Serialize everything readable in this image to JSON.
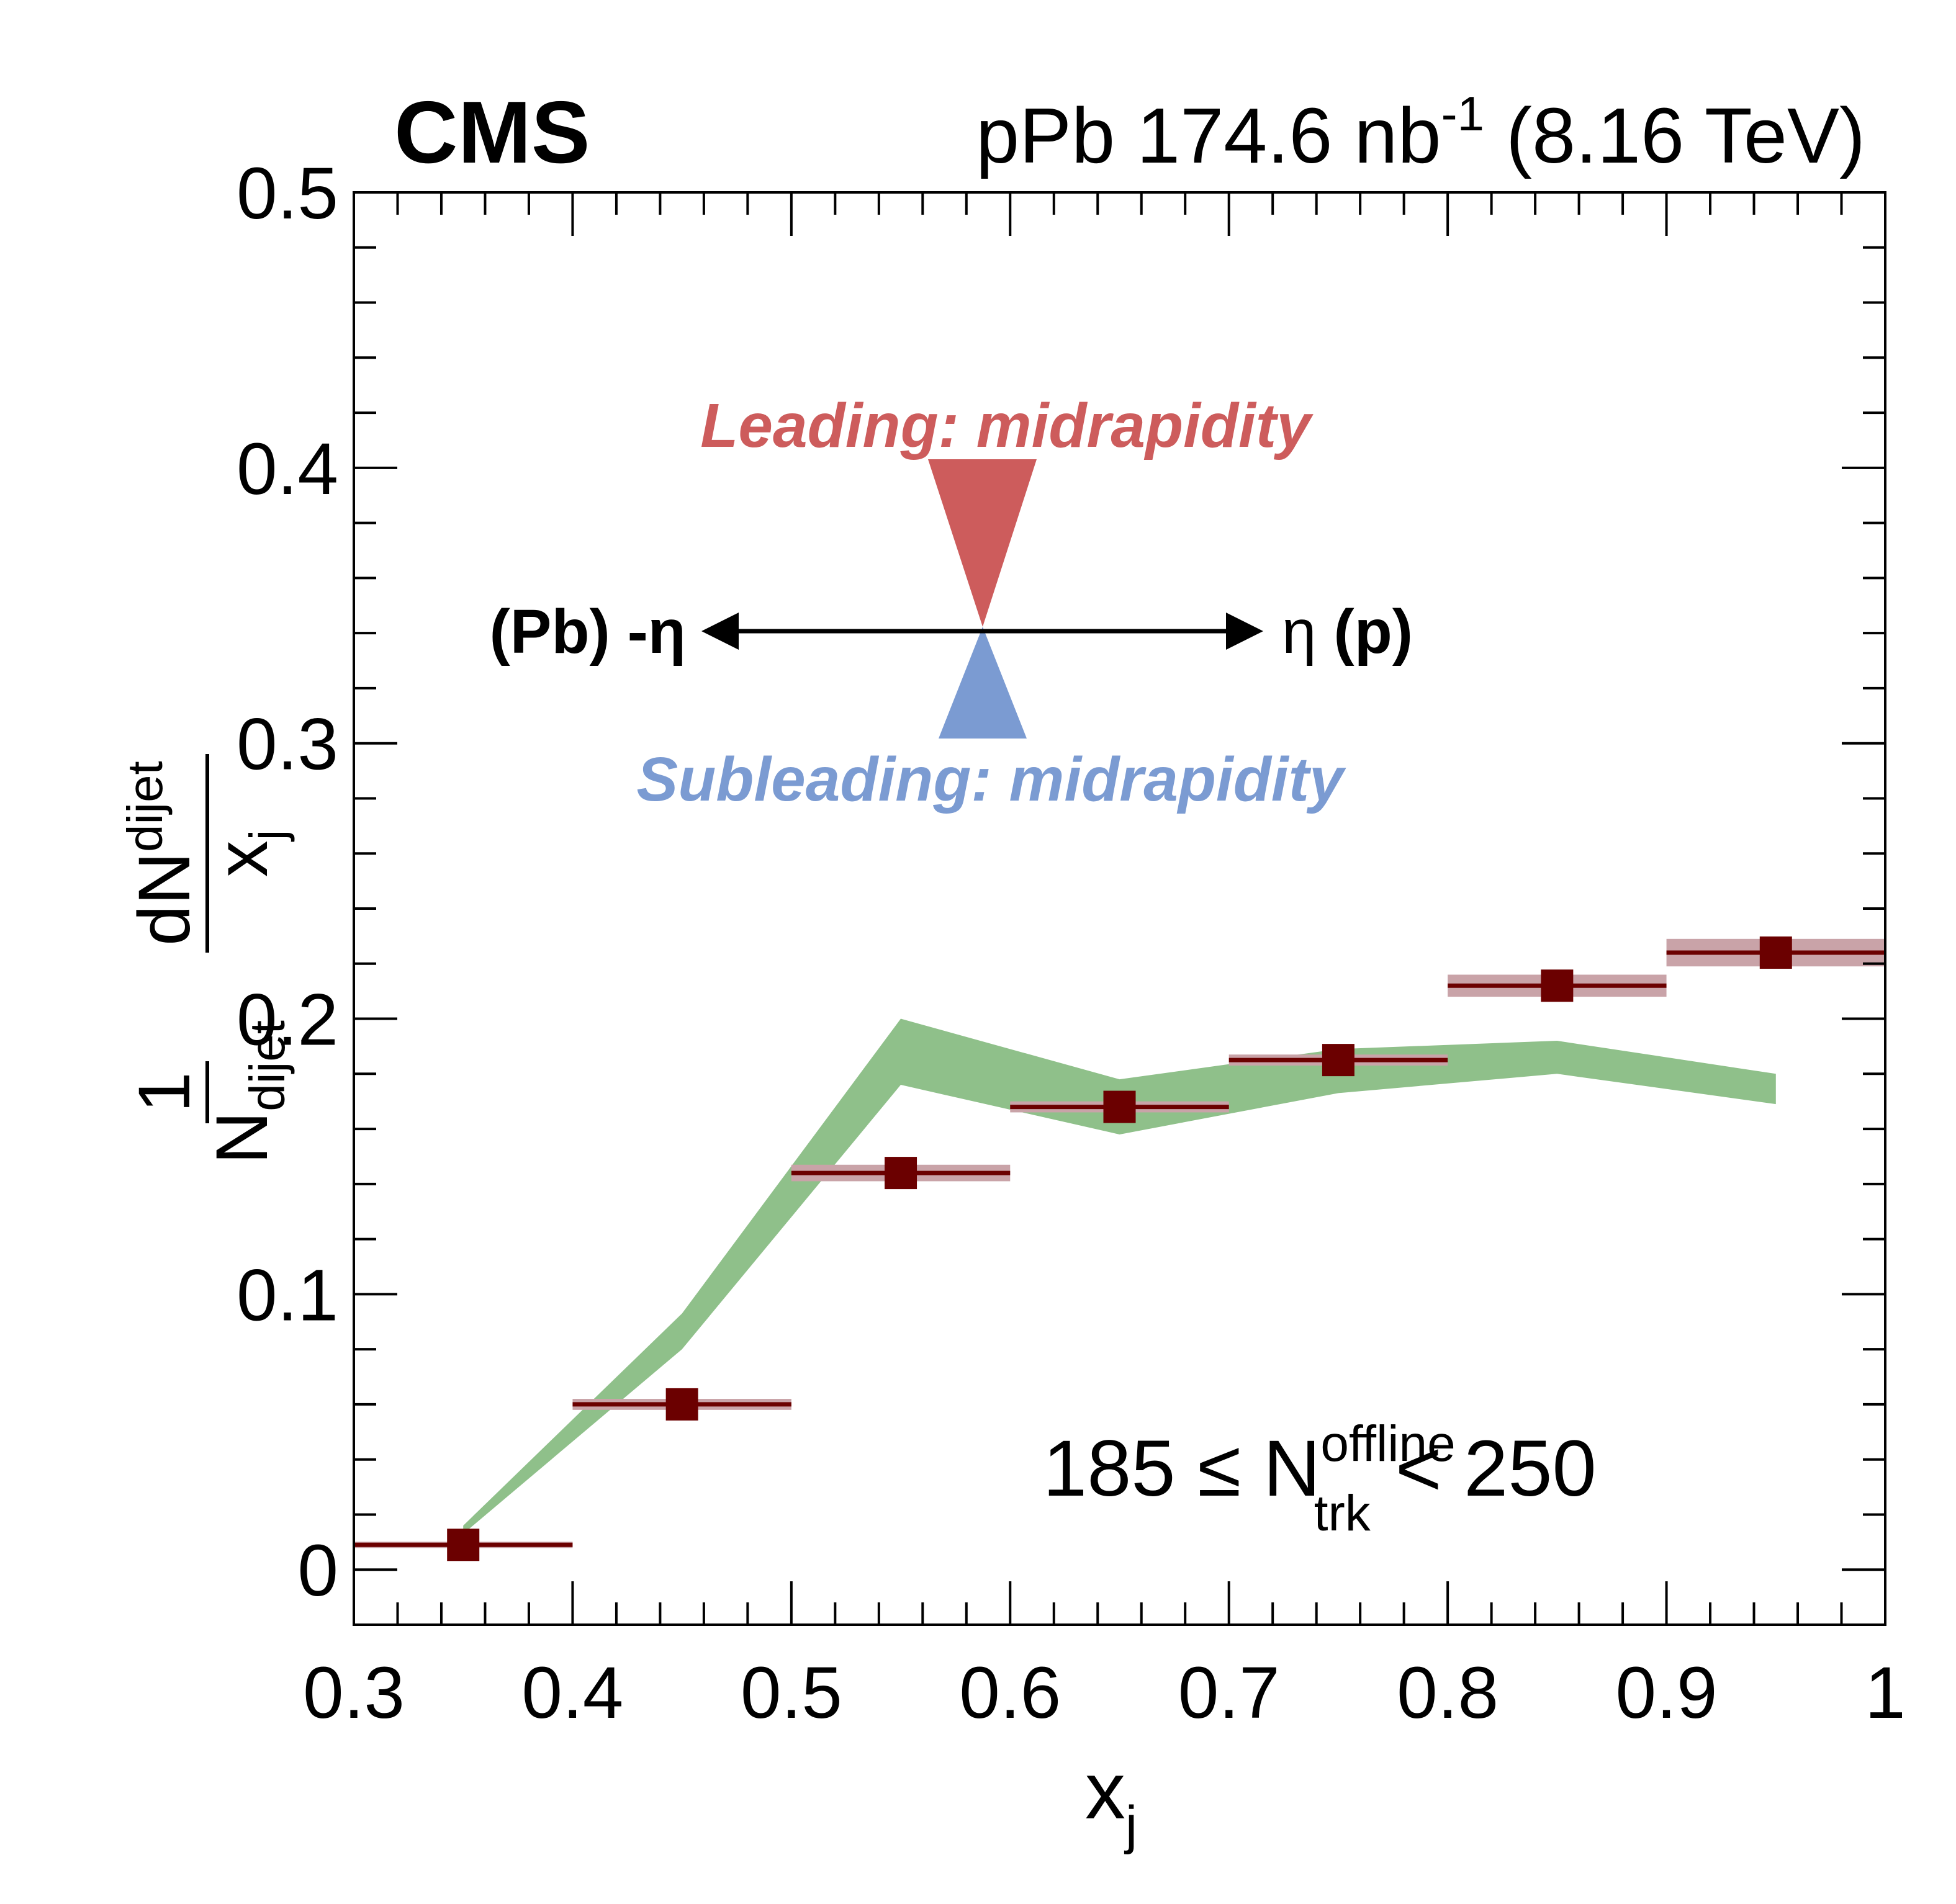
{
  "header": {
    "experiment": "CMS",
    "lumi_prefix": "pPb 174.6 nb",
    "lumi_exp": "-1",
    "energy": "(8.16 TeV)"
  },
  "axes": {
    "y_numer_main": "dN",
    "y_numer_sub": "dijet",
    "y_denom_main": "x",
    "y_denom_sub": "j",
    "y_frac_num": "1",
    "y_frac_den_main": "N",
    "y_frac_den_sub": "dijet",
    "x_label_main": "x",
    "x_label_sub": "j"
  },
  "annotations": {
    "leading": "Leading: midrapidity",
    "subleading": "Subleading: midrapidity",
    "left_dir": "(Pb) -η",
    "right_eta": "η",
    "right_paren": "(p)",
    "mult_left": "185 ≤ N",
    "mult_sup": "offline",
    "mult_sub": "trk",
    "mult_right": "< 250",
    "leading_color": "#cd5c5c",
    "subleading_color": "#7b9bd2"
  },
  "chart_data": {
    "type": "scatter",
    "xlim": [
      0.3,
      1.0
    ],
    "ylim": [
      -0.02,
      0.5
    ],
    "x_ticks": [
      "0.3",
      "0.4",
      "0.5",
      "0.6",
      "0.7",
      "0.8",
      "0.9",
      "1"
    ],
    "y_ticks": [
      "0",
      "0.1",
      "0.2",
      "0.3",
      "0.4",
      "0.5"
    ],
    "grid": false,
    "colors": {
      "data": "#6b0000",
      "syst": "#c9a3a8",
      "band": "#8fc08a"
    },
    "data_points": [
      {
        "x": 0.35,
        "xlo": 0.3,
        "xhi": 0.4,
        "y": 0.009,
        "syst": 0.001
      },
      {
        "x": 0.45,
        "xlo": 0.4,
        "xhi": 0.5,
        "y": 0.06,
        "syst": 0.002
      },
      {
        "x": 0.55,
        "xlo": 0.5,
        "xhi": 0.6,
        "y": 0.144,
        "syst": 0.003
      },
      {
        "x": 0.65,
        "xlo": 0.6,
        "xhi": 0.7,
        "y": 0.168,
        "syst": 0.002
      },
      {
        "x": 0.75,
        "xlo": 0.7,
        "xhi": 0.8,
        "y": 0.185,
        "syst": 0.002
      },
      {
        "x": 0.85,
        "xlo": 0.8,
        "xhi": 0.9,
        "y": 0.212,
        "syst": 0.004
      },
      {
        "x": 0.95,
        "xlo": 0.9,
        "xhi": 1.0,
        "y": 0.224,
        "syst": 0.005
      }
    ],
    "band": [
      {
        "x": 0.35,
        "lo": 0.013,
        "hi": 0.016
      },
      {
        "x": 0.45,
        "lo": 0.08,
        "hi": 0.093
      },
      {
        "x": 0.55,
        "lo": 0.176,
        "hi": 0.2
      },
      {
        "x": 0.65,
        "lo": 0.158,
        "hi": 0.178
      },
      {
        "x": 0.75,
        "lo": 0.173,
        "hi": 0.189
      },
      {
        "x": 0.85,
        "lo": 0.18,
        "hi": 0.192
      },
      {
        "x": 0.95,
        "lo": 0.169,
        "hi": 0.18
      }
    ]
  }
}
